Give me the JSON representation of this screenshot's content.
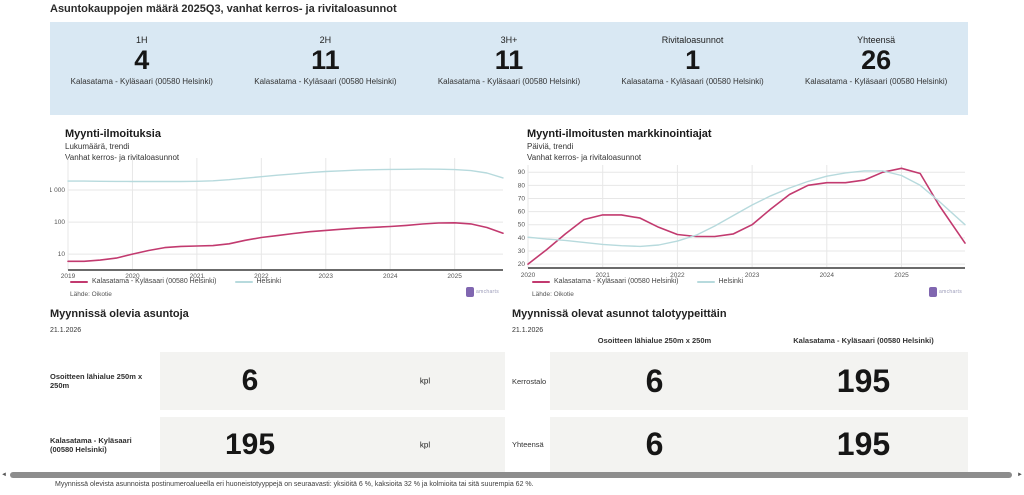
{
  "title": "Asuntokauppojen määrä 2025Q3, vanhat kerros- ja rivitaloasunnot",
  "colors": {
    "banner": "#d9e8f3",
    "cell": "#f3f3f1",
    "accent_pink": "#c23a6f",
    "accent_blue": "#b7dadd"
  },
  "summary_cards": [
    {
      "label": "1H",
      "value": "4",
      "sublabel": "Kalasatama - Kyläsaari (00580 Helsinki)"
    },
    {
      "label": "2H",
      "value": "11",
      "sublabel": "Kalasatama - Kyläsaari (00580 Helsinki)"
    },
    {
      "label": "3H+",
      "value": "11",
      "sublabel": "Kalasatama - Kyläsaari (00580 Helsinki)"
    },
    {
      "label": "Rivitaloasunnot",
      "value": "1",
      "sublabel": "Kalasatama - Kyläsaari (00580 Helsinki)"
    },
    {
      "label": "Yhteensä",
      "value": "26",
      "sublabel": "Kalasatama - Kyläsaari (00580 Helsinki)"
    }
  ],
  "chart_data": [
    {
      "type": "line",
      "title": "Myynti-ilmoituksia",
      "subtitle": "Lukumäärä, trendi",
      "note": "Vanhat kerros- ja rivitaloasunnot",
      "source": "Lähde: Oikotie",
      "xlabel": "",
      "ylabel": "",
      "yscale": "log",
      "ylim": [
        3.2,
        10000
      ],
      "yticks": [
        {
          "v": 10,
          "label": "10"
        },
        {
          "v": 100,
          "label": "100"
        },
        {
          "v": 1000,
          "label": "1 000"
        }
      ],
      "xlim": [
        2019,
        2025.75
      ],
      "xticks": [
        2019,
        2020,
        2021,
        2022,
        2023,
        2024,
        2025
      ],
      "grid": true,
      "legend_position": "bottom",
      "x": [
        2019,
        2019.25,
        2019.5,
        2019.75,
        2020,
        2020.25,
        2020.5,
        2020.75,
        2021,
        2021.25,
        2021.5,
        2021.75,
        2022,
        2022.25,
        2022.5,
        2022.75,
        2023,
        2023.25,
        2023.5,
        2023.75,
        2024,
        2024.25,
        2024.5,
        2024.75,
        2025,
        2025.25,
        2025.5,
        2025.75
      ],
      "series": [
        {
          "name": "Kalasatama - Kyläsaari (00580 Helsinki)",
          "color": "#c23a6f",
          "width": 1.6,
          "values": [
            6,
            6,
            6.5,
            7.5,
            10,
            13,
            16,
            17.5,
            18,
            18.5,
            21,
            27,
            33,
            38,
            44,
            50,
            55,
            60,
            65,
            69,
            73,
            79,
            87,
            94,
            95,
            88,
            68,
            45
          ]
        },
        {
          "name": "Helsinki",
          "color": "#b7dadd",
          "width": 1.4,
          "values": [
            1900,
            1900,
            1880,
            1860,
            1850,
            1850,
            1850,
            1850,
            1870,
            1950,
            2100,
            2350,
            2600,
            2900,
            3200,
            3500,
            3800,
            4000,
            4200,
            4300,
            4400,
            4450,
            4500,
            4480,
            4350,
            4050,
            3400,
            2400
          ]
        }
      ]
    },
    {
      "type": "line",
      "title": "Myynti-ilmoitusten markkinointiajat",
      "subtitle": "Päiviä, trendi",
      "note": "Vanhat kerros- ja rivitaloasunnot",
      "source": "Lähde: Oikotie",
      "xlabel": "",
      "ylabel": "",
      "yscale": "linear",
      "ylim": [
        17,
        95.5
      ],
      "yticks": [
        {
          "v": 20,
          "label": "20"
        },
        {
          "v": 30,
          "label": "30"
        },
        {
          "v": 40,
          "label": "40"
        },
        {
          "v": 50,
          "label": "50"
        },
        {
          "v": 60,
          "label": "60"
        },
        {
          "v": 70,
          "label": "70"
        },
        {
          "v": 80,
          "label": "80"
        },
        {
          "v": 90,
          "label": "90"
        }
      ],
      "xlim": [
        2020,
        2025.85
      ],
      "xticks": [
        2020,
        2021,
        2022,
        2023,
        2024,
        2025
      ],
      "grid": true,
      "legend_position": "bottom",
      "x": [
        2020,
        2020.25,
        2020.5,
        2020.75,
        2021,
        2021.25,
        2021.5,
        2021.75,
        2022,
        2022.25,
        2022.5,
        2022.75,
        2023,
        2023.25,
        2023.5,
        2023.75,
        2024,
        2024.25,
        2024.5,
        2024.75,
        2025,
        2025.25,
        2025.5,
        2025.85
      ],
      "series": [
        {
          "name": "Kalasatama - Kyläsaari (00580 Helsinki)",
          "color": "#c23a6f",
          "width": 1.6,
          "values": [
            20,
            31,
            43,
            54,
            57.5,
            57.5,
            55,
            48,
            42.5,
            41,
            41,
            43,
            50,
            62,
            73,
            80,
            82,
            82,
            84,
            90,
            93,
            89,
            65,
            36
          ]
        },
        {
          "name": "Helsinki",
          "color": "#b7dadd",
          "width": 1.4,
          "values": [
            40.5,
            39,
            38,
            36.5,
            35,
            34,
            33.5,
            34.5,
            37.5,
            42,
            49,
            57,
            65,
            72,
            78,
            83,
            87,
            89.5,
            91,
            91,
            87.5,
            80,
            68,
            50
          ]
        }
      ]
    }
  ],
  "watermark": "amcharts",
  "listings": {
    "heading": "Myynnissä olevia asuntoja",
    "date": "21.1.2026",
    "rows": [
      {
        "label": "Osoitteen lähialue 250m x 250m",
        "value": "6",
        "unit": "kpl"
      },
      {
        "label": "Kalasatama - Kyläsaari (00580 Helsinki)",
        "value": "195",
        "unit": "kpl"
      }
    ]
  },
  "by_type": {
    "heading": "Myynnissä olevat asunnot talotyypeittäin",
    "date": "21.1.2026",
    "columns": [
      "Osoitteen lähialue 250m x 250m",
      "Kalasatama - Kyläsaari (00580 Helsinki)"
    ],
    "rows": [
      {
        "label": "Kerrostalo",
        "values": [
          "6",
          "195"
        ]
      },
      {
        "label": "Yhteensä",
        "values": [
          "6",
          "195"
        ]
      }
    ]
  },
  "scrollbar": {
    "left_arrow": "◄",
    "right_arrow": "►"
  },
  "footnote": "Myynnissä olevista asunnoista postinumeroalueella eri huoneistotyyppejä on seuraavasti: yksiöitä 6 %, kaksioita 32 % ja kolmioita tai sitä suurempia 62 %."
}
